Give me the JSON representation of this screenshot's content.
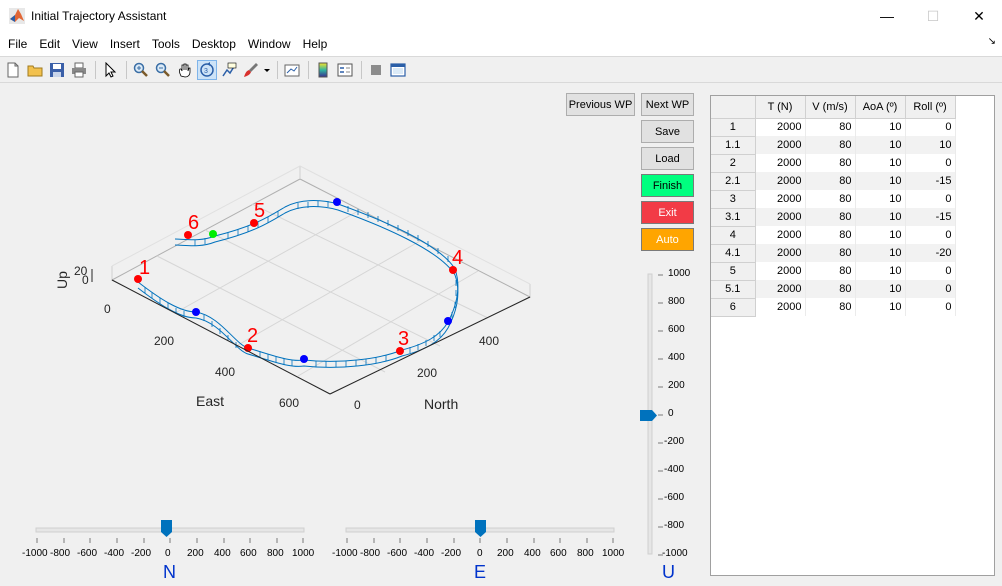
{
  "window": {
    "title": "Initial Trajectory Assistant",
    "minimize": "—",
    "maximize": "☐",
    "close": "✕"
  },
  "menu": [
    "File",
    "Edit",
    "View",
    "Insert",
    "Tools",
    "Desktop",
    "Window",
    "Help"
  ],
  "toolbar_icons": [
    "new-file-icon",
    "open-folder-icon",
    "save-icon",
    "print-icon",
    "pointer-icon",
    "zoom-in-icon",
    "zoom-out-icon",
    "pan-icon",
    "rotate-3d-icon",
    "data-cursor-icon",
    "brush-icon",
    "link-plot-icon",
    "colorbar-icon",
    "legend-icon",
    "hide-plot-tools-icon",
    "show-plot-tools-icon"
  ],
  "buttons": {
    "previous_wp": "Previous WP",
    "next_wp": "Next WP",
    "save": "Save",
    "load": "Load",
    "finish": "Finish",
    "exit": "Exit",
    "auto": "Auto"
  },
  "colors": {
    "finish": "#00ff7f",
    "exit": "#f23b46",
    "auto": "#ffa500",
    "trajectory": "#0000ff",
    "waypoint": "#ff0000",
    "slider_thumb": "#0072bd",
    "axis_label_slider": "#0033cc"
  },
  "plot3d": {
    "xlabel": "East",
    "ylabel": "North",
    "zlabel": "Up",
    "east_ticks": [
      "0",
      "200",
      "400",
      "600"
    ],
    "north_ticks": [
      "0",
      "200",
      "400"
    ],
    "up_ticks": [
      "20",
      "0"
    ],
    "waypoint_labels": [
      "1",
      "2",
      "3",
      "4",
      "5",
      "6"
    ]
  },
  "table": {
    "headers": [
      "",
      "T (N)",
      "V (m/s)",
      "AoA (º)",
      "Roll (º)"
    ],
    "rows": [
      [
        "1",
        "2000",
        "80",
        "10",
        "0"
      ],
      [
        "1.1",
        "2000",
        "80",
        "10",
        "10"
      ],
      [
        "2",
        "2000",
        "80",
        "10",
        "0"
      ],
      [
        "2.1",
        "2000",
        "80",
        "10",
        "-15"
      ],
      [
        "3",
        "2000",
        "80",
        "10",
        "0"
      ],
      [
        "3.1",
        "2000",
        "80",
        "10",
        "-15"
      ],
      [
        "4",
        "2000",
        "80",
        "10",
        "0"
      ],
      [
        "4.1",
        "2000",
        "80",
        "10",
        "-20"
      ],
      [
        "5",
        "2000",
        "80",
        "10",
        "0"
      ],
      [
        "5.1",
        "2000",
        "80",
        "10",
        "0"
      ],
      [
        "6",
        "2000",
        "80",
        "10",
        "0"
      ]
    ]
  },
  "sliders": {
    "n": {
      "label": "N",
      "value": 0,
      "ticks": [
        "-1000",
        "-800",
        "-600",
        "-400",
        "-200",
        "0",
        "200",
        "400",
        "600",
        "800",
        "1000"
      ]
    },
    "e": {
      "label": "E",
      "value": 0,
      "ticks": [
        "-1000",
        "-800",
        "-600",
        "-400",
        "-200",
        "0",
        "200",
        "400",
        "600",
        "800",
        "1000"
      ]
    },
    "u": {
      "label": "U",
      "value": 0,
      "ticks": [
        "1000",
        "800",
        "600",
        "400",
        "200",
        "0",
        "-200",
        "-400",
        "-600",
        "-800",
        "-1000"
      ]
    }
  }
}
